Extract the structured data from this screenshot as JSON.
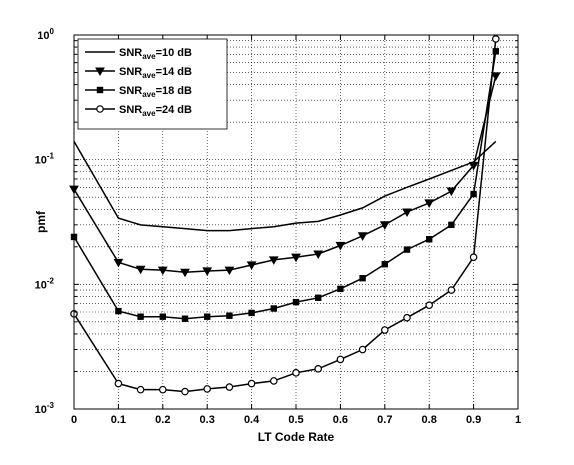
{
  "chart_data": {
    "type": "line",
    "xlabel": "LT Code Rate",
    "ylabel": "pmf",
    "xlim": [
      0,
      1
    ],
    "ylim": [
      0.001,
      1
    ],
    "yscale": "log",
    "grid": true,
    "legend_position": "top-left",
    "x_ticks": [
      "0",
      "0.1",
      "0.2",
      "0.3",
      "0.4",
      "0.5",
      "0.6",
      "0.7",
      "0.8",
      "0.9",
      "1"
    ],
    "y_ticks": [
      {
        "base": "10",
        "exp": "-3"
      },
      {
        "base": "10",
        "exp": "-2"
      },
      {
        "base": "10",
        "exp": "-1"
      },
      {
        "base": "10",
        "exp": "0"
      }
    ],
    "x": [
      0,
      0.1,
      0.15,
      0.2,
      0.25,
      0.3,
      0.35,
      0.4,
      0.45,
      0.5,
      0.55,
      0.6,
      0.65,
      0.7,
      0.75,
      0.8,
      0.85,
      0.9,
      0.95
    ],
    "series": [
      {
        "name": "SNR_ave=10 dB",
        "legend": {
          "prefix": "SNR",
          "sub": "ave",
          "suffix": "=10 dB"
        },
        "marker": "none",
        "values": [
          0.14,
          0.034,
          0.03,
          0.029,
          0.028,
          0.027,
          0.027,
          0.028,
          0.029,
          0.031,
          0.032,
          0.036,
          0.041,
          0.051,
          0.06,
          0.07,
          0.082,
          0.096,
          0.14
        ]
      },
      {
        "name": "SNR_ave=14 dB",
        "legend": {
          "prefix": "SNR",
          "sub": "ave",
          "suffix": "=14 dB"
        },
        "marker": "triangle-down",
        "values": [
          0.058,
          0.015,
          0.0132,
          0.013,
          0.0125,
          0.0128,
          0.013,
          0.0143,
          0.0157,
          0.0165,
          0.0175,
          0.0205,
          0.0245,
          0.03,
          0.038,
          0.045,
          0.056,
          0.09,
          0.47
        ]
      },
      {
        "name": "SNR_ave=18 dB",
        "legend": {
          "prefix": "SNR",
          "sub": "ave",
          "suffix": "=18 dB"
        },
        "marker": "square",
        "values": [
          0.024,
          0.0061,
          0.0055,
          0.0055,
          0.0053,
          0.0055,
          0.0056,
          0.0059,
          0.0064,
          0.0072,
          0.0078,
          0.0092,
          0.0112,
          0.0145,
          0.019,
          0.023,
          0.03,
          0.053,
          0.74
        ]
      },
      {
        "name": "SNR_ave=24 dB",
        "legend": {
          "prefix": "SNR",
          "sub": "ave",
          "suffix": "=24 dB"
        },
        "marker": "circle",
        "values": [
          0.0058,
          0.0016,
          0.00143,
          0.00143,
          0.00138,
          0.00145,
          0.0015,
          0.0016,
          0.00168,
          0.00195,
          0.0021,
          0.0025,
          0.003,
          0.0043,
          0.0054,
          0.0068,
          0.009,
          0.0165,
          0.93
        ]
      }
    ]
  }
}
